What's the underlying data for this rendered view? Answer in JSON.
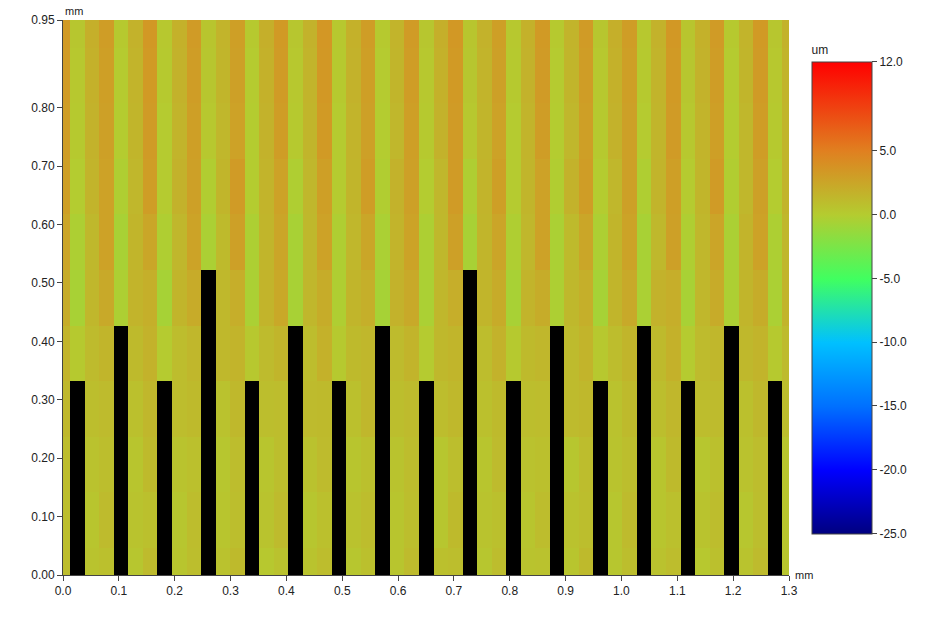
{
  "chart_data": {
    "type": "heatmap",
    "x_label": "mm",
    "y_label": "mm",
    "x": [
      0,
      0.026,
      0.052,
      0.078,
      0.104,
      0.13,
      0.156,
      0.182,
      0.208,
      0.234,
      0.26,
      0.286,
      0.312,
      0.338,
      0.364,
      0.39,
      0.416,
      0.442,
      0.468,
      0.494,
      0.52,
      0.546,
      0.572,
      0.598,
      0.624,
      0.65,
      0.676,
      0.702,
      0.728,
      0.754,
      0.78,
      0.806,
      0.832,
      0.858,
      0.884,
      0.91,
      0.936,
      0.962,
      0.988,
      1.014,
      1.04,
      1.066,
      1.092,
      1.118,
      1.144,
      1.17,
      1.196,
      1.222,
      1.248,
      1.274,
      1.3
    ],
    "y": [
      0,
      0.095,
      0.19,
      0.285,
      0.38,
      0.475,
      0.57,
      0.665,
      0.76,
      0.855,
      0.95
    ],
    "cells": [
      [
        1.0,
        null,
        0.6,
        0.8,
        null,
        0.4,
        1.1,
        null,
        0.5,
        0.9,
        null,
        0.7,
        1.2,
        null,
        0.3,
        0.7,
        null,
        0.6,
        1.0,
        null,
        0.4,
        0.8,
        null,
        0.5,
        1.1,
        null,
        0.8,
        0.9,
        null,
        0.4,
        1.0,
        null,
        0.6,
        0.7,
        null,
        0.5,
        1.2,
        null,
        0.4,
        0.9,
        null,
        0.7,
        1.0,
        null,
        0.3,
        0.8,
        null,
        0.6,
        1.1,
        null,
        0.5
      ],
      [
        0.9,
        null,
        0.5,
        1.1,
        null,
        0.6,
        0.8,
        null,
        0.4,
        1.0,
        null,
        0.5,
        0.9,
        null,
        0.6,
        1.1,
        null,
        0.4,
        0.8,
        null,
        0.7,
        1.0,
        null,
        0.5,
        0.9,
        null,
        0.4,
        1.2,
        null,
        0.6,
        0.8,
        null,
        0.5,
        1.0,
        null,
        0.7,
        0.9,
        null,
        0.4,
        1.1,
        null,
        0.5,
        0.8,
        null,
        0.6,
        1.0,
        null,
        0.4,
        0.9,
        null,
        0.5
      ],
      [
        1.0,
        null,
        0.7,
        0.9,
        null,
        0.5,
        1.2,
        null,
        0.6,
        0.8,
        null,
        0.4,
        1.0,
        null,
        0.5,
        0.9,
        null,
        0.7,
        1.1,
        null,
        0.5,
        0.8,
        null,
        0.6,
        1.0,
        null,
        0.4,
        0.9,
        null,
        0.5,
        1.1,
        null,
        0.7,
        0.8,
        null,
        0.4,
        1.0,
        null,
        0.6,
        0.9,
        null,
        0.5,
        1.2,
        null,
        0.4,
        0.8,
        null,
        0.7,
        1.0,
        null,
        0.5
      ],
      [
        1.3,
        null,
        0.9,
        1.1,
        null,
        0.8,
        1.4,
        null,
        1.0,
        1.2,
        null,
        0.7,
        1.3,
        null,
        0.9,
        1.0,
        null,
        1.1,
        1.2,
        null,
        0.8,
        1.4,
        null,
        0.9,
        1.1,
        null,
        1.0,
        1.3,
        null,
        0.8,
        1.2,
        null,
        0.9,
        1.0,
        null,
        1.1,
        1.3,
        null,
        0.7,
        1.2,
        null,
        0.9,
        1.4,
        null,
        1.0,
        1.1,
        null,
        0.8,
        1.3,
        null,
        0.9
      ],
      [
        1.6,
        0.2,
        1.1,
        1.5,
        null,
        1.2,
        1.7,
        0.1,
        1.0,
        1.4,
        null,
        1.3,
        1.6,
        0.3,
        1.1,
        1.5,
        null,
        1.0,
        1.8,
        0.2,
        1.2,
        1.4,
        null,
        1.1,
        1.6,
        0.1,
        1.3,
        1.5,
        null,
        1.0,
        1.7,
        0.2,
        1.2,
        1.4,
        null,
        1.1,
        1.6,
        0.3,
        1.0,
        1.5,
        null,
        1.2,
        1.8,
        0.1,
        1.1,
        1.4,
        null,
        1.3,
        1.6,
        0.2,
        1.1
      ],
      [
        2.1,
        -0.5,
        1.4,
        2.3,
        -0.3,
        1.6,
        1.9,
        -0.6,
        1.5,
        2.2,
        null,
        1.3,
        2.0,
        -0.4,
        1.6,
        2.4,
        -0.5,
        1.4,
        2.1,
        -0.2,
        1.5,
        1.9,
        -0.6,
        1.7,
        2.3,
        -0.4,
        1.4,
        2.0,
        null,
        1.5,
        2.2,
        -0.5,
        1.6,
        2.1,
        -0.3,
        1.3,
        1.9,
        -0.6,
        1.5,
        2.3,
        -0.4,
        1.7,
        2.0,
        -0.5,
        1.4,
        2.2,
        -0.3,
        1.5,
        2.1,
        -0.4,
        1.6
      ],
      [
        2.6,
        -0.3,
        1.3,
        2.8,
        -0.5,
        1.5,
        2.5,
        -0.2,
        1.4,
        2.7,
        -0.4,
        1.2,
        2.9,
        -0.3,
        1.5,
        2.6,
        -0.5,
        1.3,
        2.8,
        -0.2,
        1.4,
        2.5,
        -0.4,
        1.6,
        2.7,
        -0.3,
        1.3,
        2.9,
        -0.5,
        1.5,
        2.6,
        -0.2,
        1.4,
        2.8,
        -0.4,
        1.2,
        2.5,
        -0.3,
        1.5,
        2.7,
        -0.5,
        1.3,
        2.9,
        -0.2,
        1.4,
        2.6,
        -0.4,
        1.6,
        2.8,
        -0.3,
        1.4
      ],
      [
        3.0,
        0.0,
        1.6,
        2.8,
        -0.2,
        1.4,
        3.1,
        0.1,
        1.7,
        2.9,
        -0.1,
        1.5,
        3.2,
        0.0,
        1.6,
        2.8,
        -0.2,
        1.4,
        3.0,
        0.1,
        1.5,
        3.1,
        -0.1,
        1.7,
        2.9,
        0.0,
        1.4,
        3.2,
        -0.2,
        1.6,
        3.0,
        0.1,
        1.5,
        2.8,
        -0.1,
        1.7,
        3.1,
        0.0,
        1.4,
        2.9,
        -0.2,
        1.6,
        3.0,
        0.1,
        1.5,
        3.2,
        -0.1,
        1.4,
        2.9,
        0.0,
        1.6
      ],
      [
        3.1,
        0.2,
        1.7,
        2.9,
        0.0,
        1.5,
        3.2,
        0.1,
        1.6,
        3.0,
        0.3,
        1.4,
        2.8,
        0.0,
        1.7,
        3.1,
        0.2,
        1.5,
        3.3,
        0.1,
        1.6,
        2.9,
        0.0,
        1.4,
        3.0,
        0.2,
        1.7,
        3.2,
        0.3,
        1.5,
        2.8,
        0.1,
        1.6,
        3.1,
        0.0,
        1.4,
        3.0,
        0.2,
        1.7,
        2.9,
        0.1,
        1.5,
        3.2,
        0.3,
        1.6,
        3.0,
        0.0,
        1.4,
        3.1,
        0.2,
        1.5
      ],
      [
        3.2,
        0.3,
        1.8,
        3.0,
        0.1,
        1.6,
        3.3,
        0.2,
        1.7,
        3.1,
        0.4,
        1.5,
        2.9,
        0.1,
        1.8,
        3.2,
        0.3,
        1.6,
        3.4,
        0.2,
        1.7,
        3.0,
        0.1,
        1.5,
        3.1,
        0.3,
        1.8,
        3.3,
        0.4,
        1.6,
        2.9,
        0.2,
        1.7,
        3.2,
        0.1,
        1.5,
        3.1,
        0.3,
        1.8,
        3.0,
        0.2,
        1.6,
        3.3,
        0.4,
        1.7,
        3.1,
        0.1,
        1.5,
        3.2,
        0.3,
        1.6
      ],
      [
        3.3,
        0.4,
        1.9,
        3.1,
        0.2,
        1.7,
        3.4,
        0.3,
        1.8,
        3.2,
        0.5,
        1.6,
        3.0,
        0.2,
        1.9,
        3.3,
        0.4,
        1.7,
        3.5,
        0.3,
        1.8,
        3.1,
        0.2,
        1.6,
        3.2,
        0.4,
        1.9,
        3.4,
        0.5,
        1.7,
        3.0,
        0.3,
        1.8,
        3.3,
        0.2,
        1.6,
        3.2,
        0.4,
        1.9,
        3.1,
        0.3,
        1.7,
        3.4,
        0.5,
        1.8,
        3.2,
        0.2,
        1.6,
        3.3,
        0.4,
        1.7
      ]
    ],
    "xlim": [
      0,
      1.3
    ],
    "xticks": [
      {
        "value": 0,
        "label": "0.0"
      },
      0.1,
      0.2,
      0.3,
      0.4,
      0.5,
      0.6,
      0.7,
      0.8,
      0.9,
      {
        "value": 1,
        "label": "1.0"
      },
      1.1,
      1.2,
      1.3
    ],
    "ylim": [
      0,
      0.95
    ],
    "yticks": [
      {
        "value": 0,
        "label": "0.00"
      },
      {
        "value": 0.1,
        "label": "0.10"
      },
      {
        "value": 0.2,
        "label": "0.20"
      },
      {
        "value": 0.3,
        "label": "0.30"
      },
      {
        "value": 0.4,
        "label": "0.40"
      },
      {
        "value": 0.5,
        "label": "0.50"
      },
      {
        "value": 0.6,
        "label": "0.60"
      },
      {
        "value": 0.7,
        "label": "0.70"
      },
      {
        "value": 0.8,
        "label": "0.80"
      },
      0.95
    ],
    "colorbar": {
      "title": "um",
      "range": [
        -25,
        12
      ],
      "ticks": [
        {
          "value": 12,
          "label": "12.0"
        },
        {
          "value": 5,
          "label": "5.0"
        },
        {
          "value": 0,
          "label": "0.0"
        },
        {
          "value": -5,
          "label": "-5.0"
        },
        {
          "value": -10,
          "label": "-10.0"
        },
        {
          "value": -15,
          "label": "-15.0"
        },
        {
          "value": -20,
          "label": "-20.0"
        },
        {
          "value": -25,
          "label": "-25.0"
        }
      ]
    }
  }
}
